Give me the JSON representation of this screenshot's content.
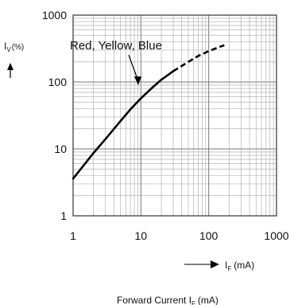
{
  "chart_data": {
    "type": "line",
    "x_scale": "log",
    "y_scale": "log",
    "xlim": [
      1,
      1000
    ],
    "ylim": [
      1,
      1000
    ],
    "x_ticks": [
      "1",
      "10",
      "100",
      "1000"
    ],
    "y_ticks": [
      "1",
      "10",
      "100",
      "1000"
    ],
    "grid": true,
    "ylabel": {
      "main": "I",
      "sub": "V",
      "unit": "(%)"
    },
    "xunit": {
      "main": "I",
      "sub": "F",
      "unit": "(mA)"
    },
    "xlabel": {
      "main": "Forward Current I",
      "sub": "F",
      "unit": "(mA)"
    },
    "series": [
      {
        "name": "Red, Yellow, Blue",
        "solid": {
          "x": [
            1,
            1.5,
            2,
            3,
            5,
            7,
            10,
            15,
            20,
            30
          ],
          "y": [
            3.6,
            6,
            8.7,
            14,
            26,
            39,
            57,
            84,
            108,
            145
          ]
        },
        "dashed": {
          "x": [
            30,
            50,
            70,
            100,
            150,
            170
          ],
          "y": [
            145,
            200,
            245,
            290,
            340,
            355
          ]
        }
      }
    ]
  }
}
